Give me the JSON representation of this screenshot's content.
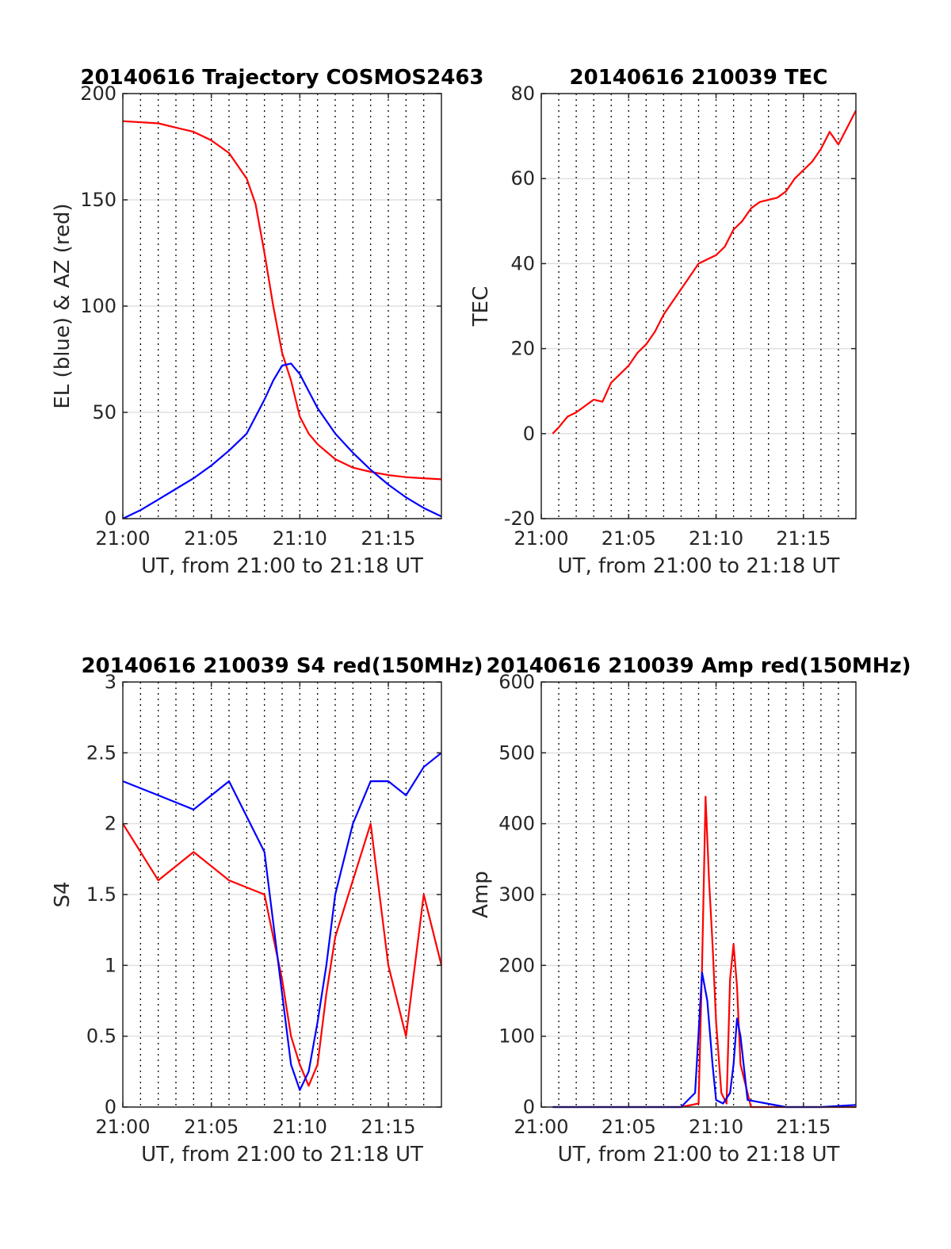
{
  "chart_data": [
    {
      "type": "line",
      "title": "20140616 Trajectory COSMOS2463",
      "xlabel": "UT, from 21:00 to 21:18 UT",
      "ylabel": "EL (blue) & AZ (red)",
      "xlim_minutes": [
        0,
        18
      ],
      "ylim": [
        0,
        200
      ],
      "xticks": [
        "21:00",
        "21:05",
        "21:10",
        "21:15"
      ],
      "yticks": [
        0,
        50,
        100,
        150,
        200
      ],
      "grid": true,
      "series": [
        {
          "color": "#ff0000",
          "x": [
            21.0,
            21.02,
            21.03,
            21.04,
            21.05,
            21.06,
            21.07,
            21.075,
            21.08,
            21.085,
            21.09,
            21.095,
            21.1,
            21.105,
            21.11,
            21.12,
            21.13,
            21.14,
            21.15,
            21.16,
            21.17,
            21.18
          ],
          "values": [
            187,
            186,
            184,
            182,
            178,
            172,
            160,
            148,
            125,
            100,
            78,
            65,
            48,
            40,
            35,
            28,
            24,
            22,
            20.5,
            19.5,
            19,
            18.5
          ]
        },
        {
          "color": "#0000ff",
          "x": [
            21.0,
            21.01,
            21.02,
            21.03,
            21.04,
            21.05,
            21.06,
            21.07,
            21.08,
            21.085,
            21.09,
            21.095,
            21.1,
            21.105,
            21.11,
            21.12,
            21.13,
            21.14,
            21.15,
            21.16,
            21.17,
            21.18
          ],
          "values": [
            0,
            4,
            9,
            14,
            19,
            25,
            32,
            40,
            56,
            65,
            72,
            73,
            68,
            60,
            52,
            40,
            31,
            23,
            16,
            10,
            5,
            1
          ]
        }
      ]
    },
    {
      "type": "line",
      "title": "20140616 210039 TEC",
      "xlabel": "UT, from 21:00 to 21:18 UT",
      "ylabel": "TEC",
      "xlim_minutes": [
        0,
        18
      ],
      "ylim": [
        -20,
        80
      ],
      "xticks": [
        "21:00",
        "21:05",
        "21:10",
        "21:15"
      ],
      "yticks": [
        -20,
        0,
        20,
        40,
        60,
        80
      ],
      "grid": true,
      "series": [
        {
          "color": "#ff0000",
          "x": [
            21.0065,
            21.01,
            21.015,
            21.02,
            21.025,
            21.03,
            21.035,
            21.04,
            21.045,
            21.05,
            21.055,
            21.06,
            21.065,
            21.07,
            21.075,
            21.08,
            21.085,
            21.09,
            21.095,
            21.1,
            21.105,
            21.11,
            21.115,
            21.12,
            21.125,
            21.13,
            21.135,
            21.14,
            21.145,
            21.15,
            21.155,
            21.16,
            21.165,
            21.17,
            21.175,
            21.18
          ],
          "values": [
            0,
            1.5,
            4,
            5,
            6.5,
            8,
            7.5,
            12,
            14,
            16,
            19,
            21,
            24,
            28,
            31,
            34,
            37,
            40,
            41,
            42,
            44,
            48,
            50,
            53,
            54.5,
            55,
            55.5,
            57,
            60,
            62,
            64,
            67,
            71,
            68,
            72,
            76
          ]
        }
      ]
    },
    {
      "type": "line",
      "title": "20140616 210039 S4 red(150MHz)",
      "xlabel": "UT, from 21:00 to 21:18 UT",
      "ylabel": "S4",
      "xlim_minutes": [
        0,
        18
      ],
      "ylim": [
        0,
        3
      ],
      "xticks": [
        "21:00",
        "21:05",
        "21:10",
        "21:15"
      ],
      "yticks": [
        0,
        0.5,
        1,
        1.5,
        2,
        2.5,
        3
      ],
      "grid": true,
      "series": [
        {
          "color": "#ff0000",
          "x": [
            21.0,
            21.02,
            21.04,
            21.06,
            21.08,
            21.085,
            21.09,
            21.095,
            21.1,
            21.105,
            21.11,
            21.115,
            21.12,
            21.13,
            21.14,
            21.15,
            21.16,
            21.17,
            21.18
          ],
          "values": [
            2.0,
            1.6,
            1.8,
            1.6,
            1.5,
            1.2,
            0.9,
            0.5,
            0.3,
            0.15,
            0.3,
            0.8,
            1.2,
            1.6,
            2.0,
            1.0,
            0.5,
            1.5,
            1.0
          ]
        },
        {
          "color": "#0000ff",
          "x": [
            21.0,
            21.02,
            21.04,
            21.06,
            21.08,
            21.085,
            21.09,
            21.095,
            21.1,
            21.105,
            21.11,
            21.115,
            21.12,
            21.13,
            21.14,
            21.15,
            21.16,
            21.17,
            21.18
          ],
          "values": [
            2.3,
            2.2,
            2.1,
            2.3,
            1.8,
            1.3,
            0.8,
            0.3,
            0.12,
            0.25,
            0.6,
            1.0,
            1.5,
            2.0,
            2.3,
            2.3,
            2.2,
            2.4,
            2.5
          ]
        }
      ]
    },
    {
      "type": "line",
      "title": "20140616 210039 Amp red(150MHz)",
      "xlabel": "UT, from 21:00 to 21:18 UT",
      "ylabel": "Amp",
      "xlim_minutes": [
        0,
        18
      ],
      "ylim": [
        0,
        600
      ],
      "xticks": [
        "21:00",
        "21:05",
        "21:10",
        "21:15"
      ],
      "yticks": [
        0,
        100,
        200,
        300,
        400,
        500,
        600
      ],
      "grid": true,
      "series": [
        {
          "color": "#ff0000",
          "x": [
            21.0065,
            21.08,
            21.09,
            21.092,
            21.094,
            21.096,
            21.098,
            21.1,
            21.103,
            21.106,
            21.108,
            21.11,
            21.112,
            21.114,
            21.12,
            21.14,
            21.16,
            21.18
          ],
          "values": [
            0,
            0,
            5,
            200,
            438,
            320,
            230,
            120,
            20,
            5,
            180,
            230,
            170,
            60,
            0,
            0,
            0,
            0
          ]
        },
        {
          "color": "#0000ff",
          "x": [
            21.0065,
            21.08,
            21.088,
            21.092,
            21.095,
            21.098,
            21.1,
            21.104,
            21.108,
            21.11,
            21.112,
            21.114,
            21.118,
            21.14,
            21.16,
            21.18
          ],
          "values": [
            0,
            0,
            20,
            190,
            150,
            60,
            10,
            5,
            20,
            60,
            125,
            100,
            10,
            0,
            0,
            3
          ]
        }
      ]
    }
  ]
}
